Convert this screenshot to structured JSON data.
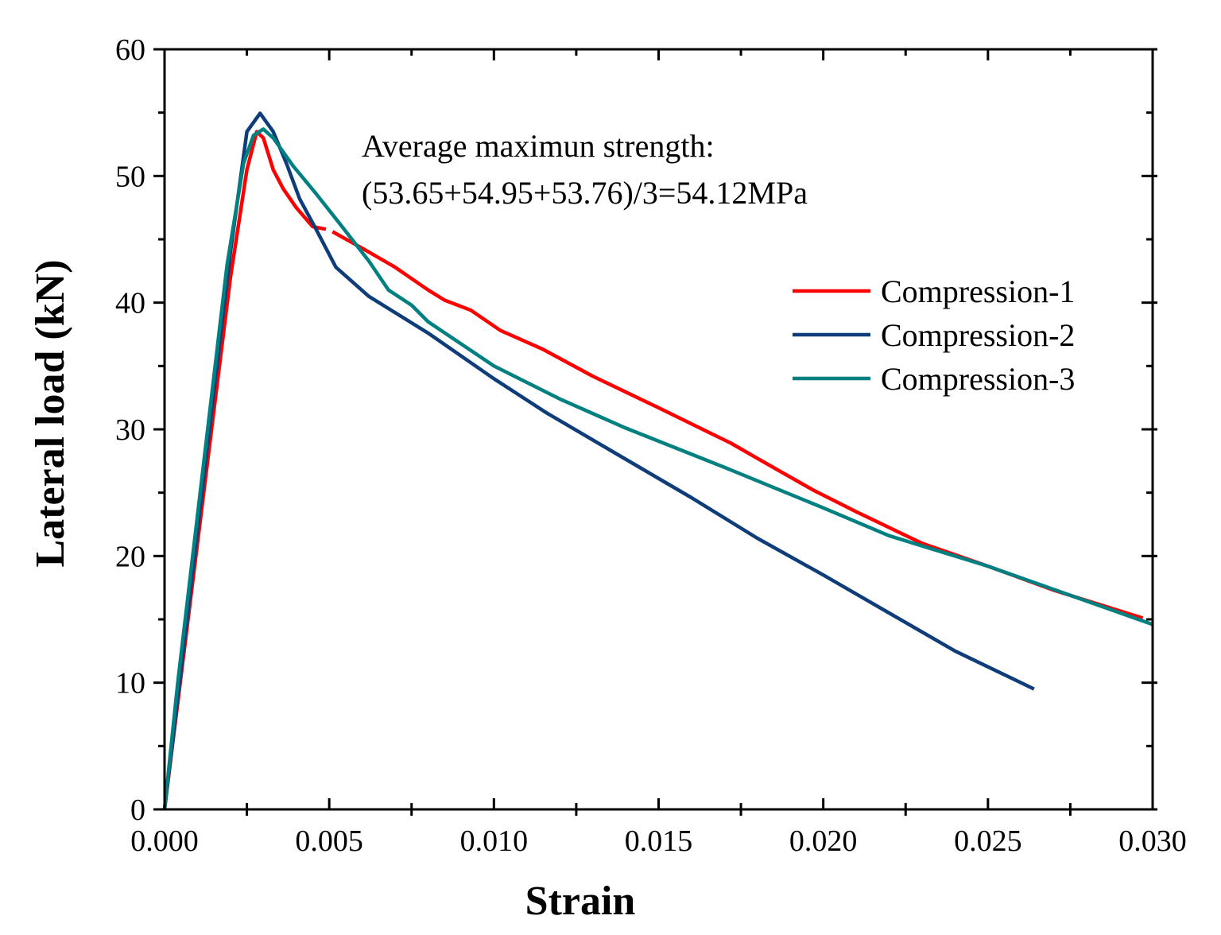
{
  "chart_data": {
    "type": "line",
    "title": "",
    "xlabel": "Strain",
    "ylabel": "Lateral load (kN)",
    "xlim": [
      0,
      0.03
    ],
    "ylim": [
      0,
      60
    ],
    "xticks": [
      0.0,
      0.005,
      0.01,
      0.015,
      0.02,
      0.025,
      0.03
    ],
    "xtick_labels": [
      "0.000",
      "0.005",
      "0.010",
      "0.015",
      "0.020",
      "0.025",
      "0.030"
    ],
    "yticks": [
      0,
      10,
      20,
      30,
      40,
      50,
      60
    ],
    "ytick_labels": [
      "0",
      "10",
      "20",
      "30",
      "40",
      "50",
      "60"
    ],
    "grid": false,
    "legend_position": "right",
    "annotation": {
      "line1": "Average maximun strength:",
      "line2": "(53.65+54.95+53.76)/3=54.12MPa"
    },
    "series": [
      {
        "name": "Compression-1",
        "color": "#FF0000",
        "gap": [
          0.0049,
          0.0051
        ],
        "x": [
          0.0,
          0.0005,
          0.001,
          0.0015,
          0.002,
          0.0025,
          0.0028,
          0.003,
          0.0033,
          0.0036,
          0.004,
          0.0045,
          0.0049,
          0.0051,
          0.006,
          0.007,
          0.008,
          0.0085,
          0.0093,
          0.0102,
          0.0115,
          0.013,
          0.015,
          0.0172,
          0.018,
          0.0197,
          0.021,
          0.023,
          0.025,
          0.027,
          0.0297
        ],
        "y": [
          0.0,
          10.5,
          21.0,
          31.5,
          42.0,
          50.5,
          53.5,
          53.0,
          50.5,
          49.0,
          47.5,
          46.0,
          45.8,
          45.6,
          44.3,
          42.8,
          41.0,
          40.2,
          39.4,
          37.8,
          36.3,
          34.2,
          31.7,
          28.9,
          27.7,
          25.2,
          23.5,
          21.0,
          19.2,
          17.3,
          15.1
        ]
      },
      {
        "name": "Compression-2",
        "color": "#0F3D7A",
        "x": [
          0.0,
          0.0005,
          0.001,
          0.0015,
          0.002,
          0.0025,
          0.0029,
          0.0033,
          0.0037,
          0.0041,
          0.0046,
          0.0052,
          0.0062,
          0.008,
          0.01,
          0.0116,
          0.0135,
          0.016,
          0.018,
          0.02,
          0.022,
          0.024,
          0.0264
        ],
        "y": [
          0.0,
          11.0,
          22.0,
          33.0,
          44.0,
          53.5,
          54.95,
          53.5,
          51.0,
          48.2,
          45.8,
          42.8,
          40.5,
          37.6,
          34.0,
          31.3,
          28.4,
          24.6,
          21.4,
          18.5,
          15.5,
          12.5,
          9.5
        ]
      },
      {
        "name": "Compression-3",
        "color": "#008080",
        "x": [
          0.0,
          0.0004,
          0.0009,
          0.0014,
          0.0019,
          0.0024,
          0.0027,
          0.003,
          0.0033,
          0.0039,
          0.0046,
          0.0053,
          0.0062,
          0.0068,
          0.0075,
          0.008,
          0.01,
          0.012,
          0.014,
          0.017,
          0.02,
          0.022,
          0.025,
          0.03
        ],
        "y": [
          0.0,
          10.0,
          21.0,
          32.0,
          43.0,
          51.0,
          53.2,
          53.7,
          53.0,
          50.8,
          48.6,
          46.3,
          43.3,
          41.0,
          39.8,
          38.5,
          35.0,
          32.4,
          30.1,
          27.0,
          23.8,
          21.6,
          19.2,
          14.6
        ]
      }
    ]
  }
}
